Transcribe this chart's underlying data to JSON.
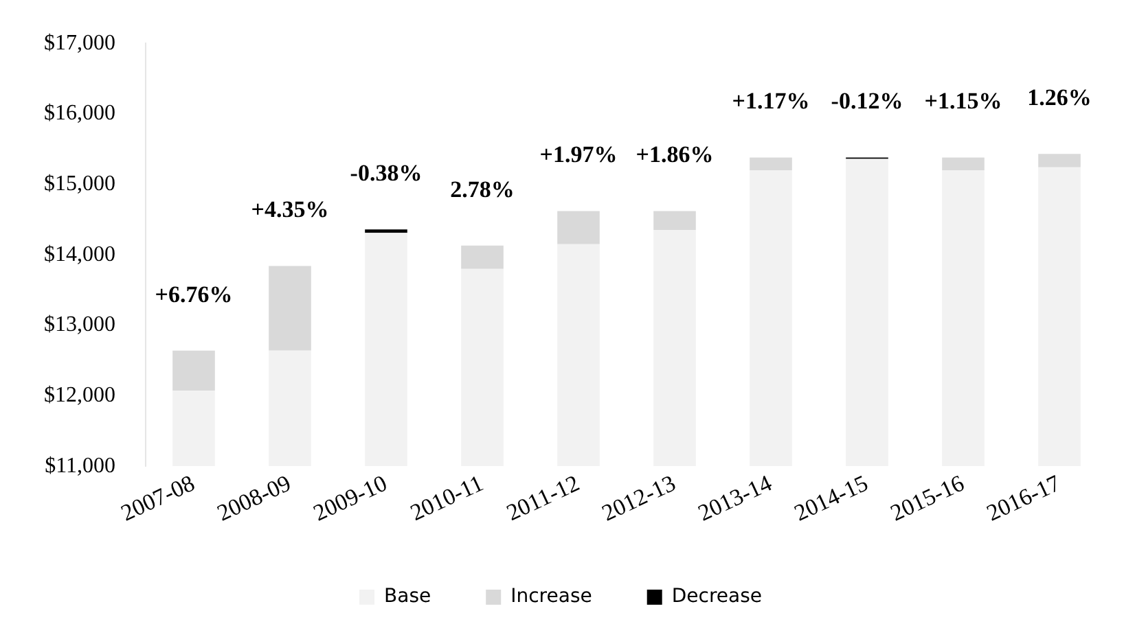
{
  "chart_data": {
    "type": "bar",
    "categories": [
      "2007-08",
      "2008-09",
      "2009-10",
      "2010-11",
      "2011-12",
      "2012-13",
      "2013-14",
      "2014-15",
      "2015-16",
      "2016-17"
    ],
    "series": [
      {
        "name": "Base",
        "color": "#f2f2f2",
        "base": [
          11000,
          11000,
          11000,
          11000,
          11000,
          11000,
          11000,
          11000,
          11000,
          11000
        ],
        "values": [
          1070,
          1640,
          3310,
          2800,
          3150,
          3350,
          4200,
          4360,
          4200,
          4240
        ]
      },
      {
        "name": "Increase",
        "color": "#d9d9d9",
        "base": [
          12070,
          12640,
          null,
          13800,
          14150,
          14350,
          15200,
          null,
          15200,
          15240
        ],
        "values": [
          570,
          1200,
          null,
          330,
          470,
          270,
          180,
          null,
          180,
          190
        ]
      },
      {
        "name": "Decrease",
        "color": "#000000",
        "base": [
          null,
          null,
          14360,
          null,
          null,
          null,
          null,
          15380,
          null,
          null
        ],
        "values": [
          null,
          null,
          -50,
          null,
          null,
          null,
          null,
          -20,
          null,
          null
        ]
      }
    ],
    "ylim": [
      11000,
      17000
    ],
    "yticks": [
      {
        "value": 11000,
        "label": "$11,000"
      },
      {
        "value": 12000,
        "label": "$12,000"
      },
      {
        "value": 13000,
        "label": "$13,000"
      },
      {
        "value": 14000,
        "label": "$14,000"
      },
      {
        "value": 15000,
        "label": "$15,000"
      },
      {
        "value": 16000,
        "label": "$16,000"
      },
      {
        "value": 17000,
        "label": "$17,000"
      }
    ],
    "grid": false,
    "legend": "bottom",
    "annotations": [
      "+6.76%",
      "+4.35%",
      "-0.38%",
      "2.78%",
      "+1.97%",
      "+1.86%",
      "+1.17%",
      "-0.12%",
      "+1.15%",
      "1.26%"
    ]
  }
}
